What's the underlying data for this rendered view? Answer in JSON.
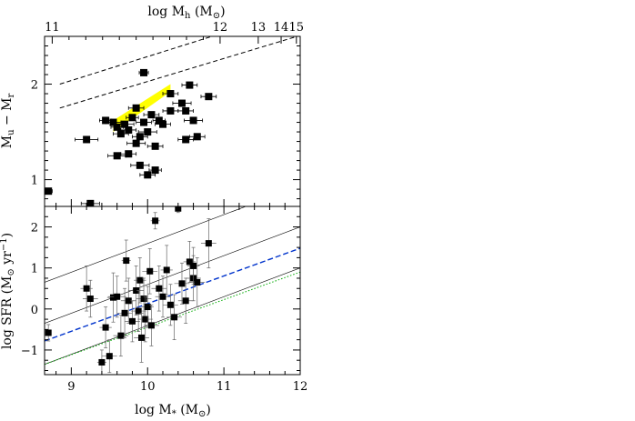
{
  "chart_data": [
    {
      "type": "scatter",
      "panel": "top",
      "ylabel": "M_u - M_r",
      "ylim": [
        0.72,
        2.5
      ],
      "xlim": [
        8.65,
        12.0
      ],
      "yticks": [
        "1",
        "2"
      ],
      "top_axis": {
        "label": "log  M_h  (M_0)",
        "ticks": [
          "11",
          "12",
          "13",
          "14",
          "15"
        ],
        "tick_positions_logMstar": [
          8.75,
          10.95,
          11.45,
          11.75,
          11.95
        ]
      },
      "dashed_lines": [
        {
          "x": [
            8.85,
            12.0
          ],
          "y": [
            2.0,
            2.79
          ]
        },
        {
          "x": [
            8.85,
            12.0
          ],
          "y": [
            1.75,
            2.51
          ]
        }
      ],
      "yellow_band": {
        "x": [
          9.55,
          10.3
        ],
        "y_low": [
          1.5,
          1.92
        ],
        "y_high": [
          1.62,
          2.0
        ],
        "color": "#ffff00"
      },
      "points": [
        {
          "x": 8.7,
          "y": 0.88,
          "xerr": 0.05
        },
        {
          "x": 9.25,
          "y": 0.75,
          "xerr": 0.12
        },
        {
          "x": 9.2,
          "y": 1.42,
          "xerr": 0.15
        },
        {
          "x": 9.45,
          "y": 1.62,
          "xerr": 0.08
        },
        {
          "x": 9.55,
          "y": 1.6,
          "xerr": 0.1
        },
        {
          "x": 9.6,
          "y": 1.55,
          "xerr": 0.08
        },
        {
          "x": 9.65,
          "y": 1.48,
          "xerr": 0.1
        },
        {
          "x": 9.7,
          "y": 1.58,
          "xerr": 0.12
        },
        {
          "x": 9.75,
          "y": 1.52,
          "xerr": 0.1
        },
        {
          "x": 9.8,
          "y": 1.65,
          "xerr": 0.08
        },
        {
          "x": 9.85,
          "y": 1.38,
          "xerr": 0.12
        },
        {
          "x": 9.9,
          "y": 1.45,
          "xerr": 0.1
        },
        {
          "x": 9.95,
          "y": 1.6,
          "xerr": 0.1
        },
        {
          "x": 10.0,
          "y": 1.5,
          "xerr": 0.12
        },
        {
          "x": 10.05,
          "y": 1.68,
          "xerr": 0.1
        },
        {
          "x": 10.1,
          "y": 1.35,
          "xerr": 0.1
        },
        {
          "x": 10.15,
          "y": 1.62,
          "xerr": 0.08
        },
        {
          "x": 10.2,
          "y": 1.58,
          "xerr": 0.1
        },
        {
          "x": 10.3,
          "y": 1.9,
          "xerr": 0.1
        },
        {
          "x": 10.45,
          "y": 1.8,
          "xerr": 0.12
        },
        {
          "x": 10.5,
          "y": 1.72,
          "xerr": 0.1
        },
        {
          "x": 10.55,
          "y": 1.99,
          "xerr": 0.1
        },
        {
          "x": 10.6,
          "y": 1.62,
          "xerr": 0.12
        },
        {
          "x": 10.65,
          "y": 1.45,
          "xerr": 0.1
        },
        {
          "x": 10.8,
          "y": 1.87,
          "xerr": 0.1
        },
        {
          "x": 9.95,
          "y": 2.12,
          "xerr": 0.06
        },
        {
          "x": 9.6,
          "y": 1.25,
          "xerr": 0.12
        },
        {
          "x": 9.75,
          "y": 1.27,
          "xerr": 0.1
        },
        {
          "x": 9.9,
          "y": 1.15,
          "xerr": 0.12
        },
        {
          "x": 10.0,
          "y": 1.05,
          "xerr": 0.1
        },
        {
          "x": 10.1,
          "y": 1.1,
          "xerr": 0.08
        },
        {
          "x": 10.5,
          "y": 1.42,
          "xerr": 0.1
        },
        {
          "x": 10.3,
          "y": 1.72,
          "xerr": 0.1
        },
        {
          "x": 9.85,
          "y": 1.75,
          "xerr": 0.1
        }
      ]
    },
    {
      "type": "scatter",
      "panel": "bottom",
      "xlabel": "log  M_*  (M_0)",
      "ylabel": "log  SFR  (M_0 yr^-1)",
      "xlim": [
        8.65,
        12.0
      ],
      "ylim": [
        -1.6,
        2.5
      ],
      "xticks": [
        "9",
        "10",
        "11",
        "12"
      ],
      "yticks": [
        "−1",
        "0",
        "1",
        "2"
      ],
      "solid_lines": [
        {
          "x": [
            8.65,
            12.0
          ],
          "y": [
            0.65,
            3.0
          ]
        },
        {
          "x": [
            8.65,
            12.0
          ],
          "y": [
            -0.35,
            2.0
          ]
        },
        {
          "x": [
            8.65,
            12.0
          ],
          "y": [
            -1.35,
            1.0
          ]
        }
      ],
      "blue_dashed_line": {
        "x": [
          8.65,
          12.0
        ],
        "y": [
          -0.78,
          1.48
        ],
        "color": "#0033cc"
      },
      "green_dotted_line": {
        "x": [
          8.65,
          12.0
        ],
        "y": [
          -1.35,
          0.9
        ],
        "color": "#00aa00"
      },
      "points": [
        {
          "x": 8.7,
          "y": -0.58,
          "xerr": 0.04,
          "yerr": 0.2
        },
        {
          "x": 9.2,
          "y": 0.5,
          "xerr": 0.08,
          "yerr": 0.55
        },
        {
          "x": 9.25,
          "y": 0.25,
          "xerr": 0.1,
          "yerr": 0.45
        },
        {
          "x": 9.4,
          "y": -1.3,
          "xerr": 0.06,
          "yerr": 0.3
        },
        {
          "x": 9.5,
          "y": -1.15,
          "xerr": 0.1,
          "yerr": 0.4
        },
        {
          "x": 9.45,
          "y": -0.45,
          "xerr": 0.08,
          "yerr": 0.5
        },
        {
          "x": 9.55,
          "y": 0.28,
          "xerr": 0.08,
          "yerr": 0.6
        },
        {
          "x": 9.6,
          "y": 0.3,
          "xerr": 0.12,
          "yerr": 0.5
        },
        {
          "x": 9.65,
          "y": -0.65,
          "xerr": 0.1,
          "yerr": 0.5
        },
        {
          "x": 9.7,
          "y": -0.1,
          "xerr": 0.1,
          "yerr": 0.6
        },
        {
          "x": 9.72,
          "y": 1.18,
          "xerr": 0.06,
          "yerr": 0.5
        },
        {
          "x": 9.75,
          "y": 0.2,
          "xerr": 0.1,
          "yerr": 0.55
        },
        {
          "x": 9.8,
          "y": -0.3,
          "xerr": 0.1,
          "yerr": 0.5
        },
        {
          "x": 9.85,
          "y": 0.45,
          "xerr": 0.1,
          "yerr": 0.6
        },
        {
          "x": 9.88,
          "y": -0.05,
          "xerr": 0.1,
          "yerr": 0.5
        },
        {
          "x": 9.9,
          "y": 0.7,
          "xerr": 0.08,
          "yerr": 0.55
        },
        {
          "x": 9.92,
          "y": -0.7,
          "xerr": 0.1,
          "yerr": 0.6
        },
        {
          "x": 9.95,
          "y": 0.25,
          "xerr": 0.1,
          "yerr": 0.5
        },
        {
          "x": 9.97,
          "y": -0.25,
          "xerr": 0.1,
          "yerr": 0.55
        },
        {
          "x": 10.0,
          "y": 0.05,
          "xerr": 0.08,
          "yerr": 0.5
        },
        {
          "x": 10.03,
          "y": 0.92,
          "xerr": 0.1,
          "yerr": 0.55
        },
        {
          "x": 10.05,
          "y": -0.4,
          "xerr": 0.1,
          "yerr": 0.5
        },
        {
          "x": 10.1,
          "y": 2.15,
          "xerr": 0.06,
          "yerr": 0.2
        },
        {
          "x": 10.15,
          "y": 0.5,
          "xerr": 0.1,
          "yerr": 0.55
        },
        {
          "x": 10.2,
          "y": 0.3,
          "xerr": 0.1,
          "yerr": 0.5
        },
        {
          "x": 10.25,
          "y": 0.95,
          "xerr": 0.08,
          "yerr": 0.6
        },
        {
          "x": 10.3,
          "y": 0.1,
          "xerr": 0.1,
          "yerr": 0.5
        },
        {
          "x": 10.35,
          "y": -0.2,
          "xerr": 0.1,
          "yerr": 0.55
        },
        {
          "x": 10.4,
          "y": 2.45,
          "xerr": 0.04,
          "yerr": 0.1
        },
        {
          "x": 10.45,
          "y": 0.62,
          "xerr": 0.1,
          "yerr": 0.5
        },
        {
          "x": 10.5,
          "y": 0.2,
          "xerr": 0.1,
          "yerr": 0.55
        },
        {
          "x": 10.55,
          "y": 1.15,
          "xerr": 0.08,
          "yerr": 0.5
        },
        {
          "x": 10.6,
          "y": 0.75,
          "xerr": 0.1,
          "yerr": 0.55
        },
        {
          "x": 10.6,
          "y": 1.05,
          "xerr": 0.08,
          "yerr": 0.45
        },
        {
          "x": 10.8,
          "y": 1.6,
          "xerr": 0.1,
          "yerr": 0.6
        },
        {
          "x": 10.65,
          "y": 0.65,
          "xerr": 0.1,
          "yerr": 0.6
        }
      ]
    }
  ]
}
